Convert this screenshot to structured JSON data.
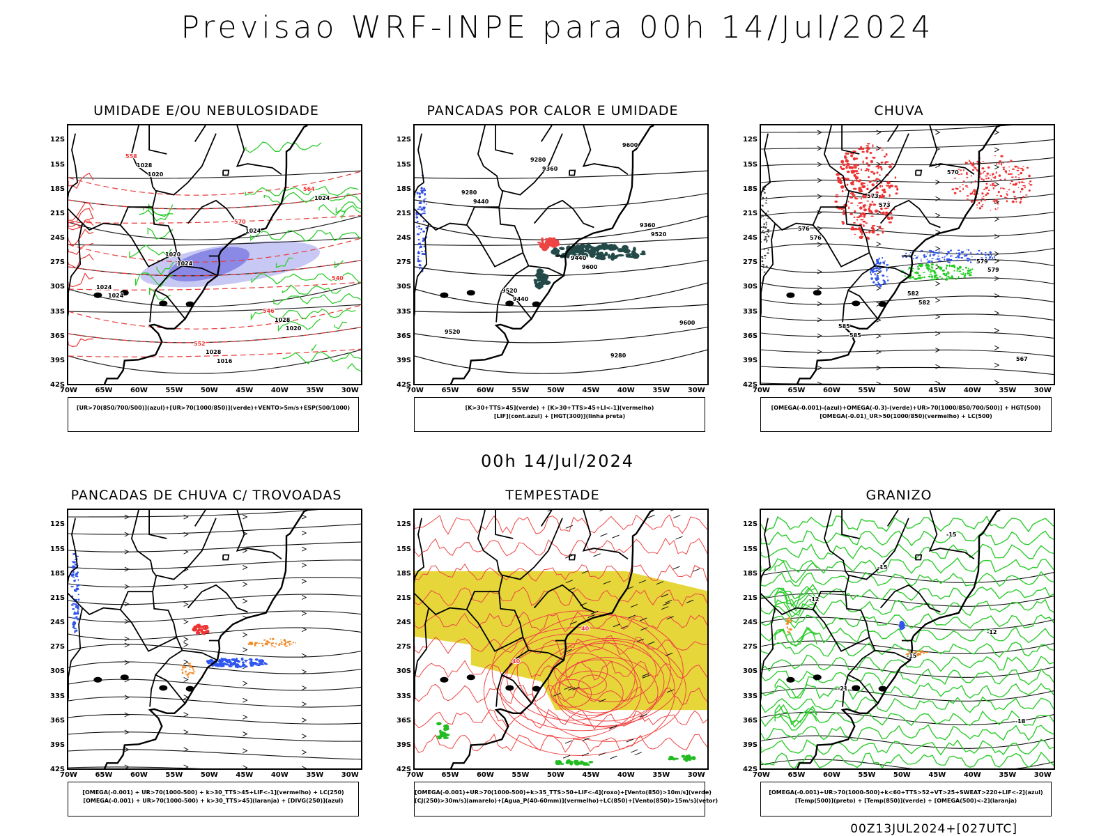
{
  "title": "Previsao WRF-INPE  para 00h 14/Jul/2024",
  "mid_date": "00h 14/Jul/2024",
  "footer": "00Z13JUL2024+[027UTC]",
  "lat_labels": [
    "12S",
    "15S",
    "18S",
    "21S",
    "24S",
    "27S",
    "30S",
    "33S",
    "36S",
    "39S",
    "42S"
  ],
  "lon_labels": [
    "70W",
    "65W",
    "60W",
    "55W",
    "50W",
    "45W",
    "40W",
    "35W",
    "30W"
  ],
  "panels": [
    {
      "title": "UMIDADE E/OU NEBULOSIDADE",
      "legend": [
        "[UR>70(850/700/500)](azul)+[UR>70(1000/850)](verde)+VENTO>5m/s+ESP(500/1000)"
      ],
      "labels": [
        "1020",
        "1016",
        "1020",
        "1024",
        "1024",
        "1024",
        "1024",
        "1028",
        "1028",
        "1028",
        "1024",
        "1020",
        "570",
        "564",
        "558",
        "552",
        "546",
        "540"
      ]
    },
    {
      "title": "PANCADAS POR CALOR E UMIDADE",
      "legend": [
        "[K>30+TTS>45](verde) + [K>30+TTS>45+LI<-1](vermelho)",
        "[LIF](cont.azul) + [HGT(300)](linha preta)"
      ],
      "labels": [
        "9600",
        "9520",
        "9440",
        "9600",
        "9520",
        "9440",
        "9360",
        "9280",
        "9600",
        "9520",
        "9440",
        "9360",
        "9280",
        "9280"
      ]
    },
    {
      "title": "CHUVA",
      "legend": [
        "[OMEGA(-0.001)-(azul)+OMEGA(-0.3)-(verde)+UR>70(1000/850/700/500)] + HGT(500)",
        "[OMEGA(-0.01)_UR>50(1000/850)(vermelho) + LC(500)"
      ],
      "labels": [
        "585",
        "582",
        "579",
        "576",
        "573",
        "570",
        "567",
        "585",
        "582",
        "579",
        "576",
        "573"
      ]
    },
    {
      "title": "PANCADAS DE CHUVA C/ TROVOADAS",
      "legend": [
        "[OMEGA(-0.001) + UR>70(1000-500) + k>30_TTS>45+LIF<-1](vermelho) + LC(250)",
        "[OMEGA(-0.001) + UR>70(1000-500) + k>30_TTS>45](laranja) + [DIVG(250)](azul)"
      ],
      "labels": []
    },
    {
      "title": "TEMPESTADE",
      "legend": [
        "[OMEGA(-0.001)+UR>70(1000-500)+k>35_TTS>50+LIF<-4](roxo)+[Vento(850)>10m/s](verde)",
        "[CJ(250)>30m/s](amarelo)+[Agua_P(40-60mm)](vermelho)+LC(850)+[Vento(850)>15m/s](vetor)"
      ],
      "labels": [
        "40",
        "40"
      ]
    },
    {
      "title": "GRANIZO",
      "legend": [
        "[OMEGA(-0.001)+UR>70(1000-500)+k<60+TTS>52+VT>25+SWEAT>220+LIF<-2](azul)",
        "[Temp(500)](preto) + [Temp(850)](verde) + [OMEGA(500)<-2](laranja)"
      ],
      "labels": [
        "-12",
        "-12",
        "-15",
        "-15",
        "-18",
        "-21",
        "-15"
      ]
    }
  ]
}
